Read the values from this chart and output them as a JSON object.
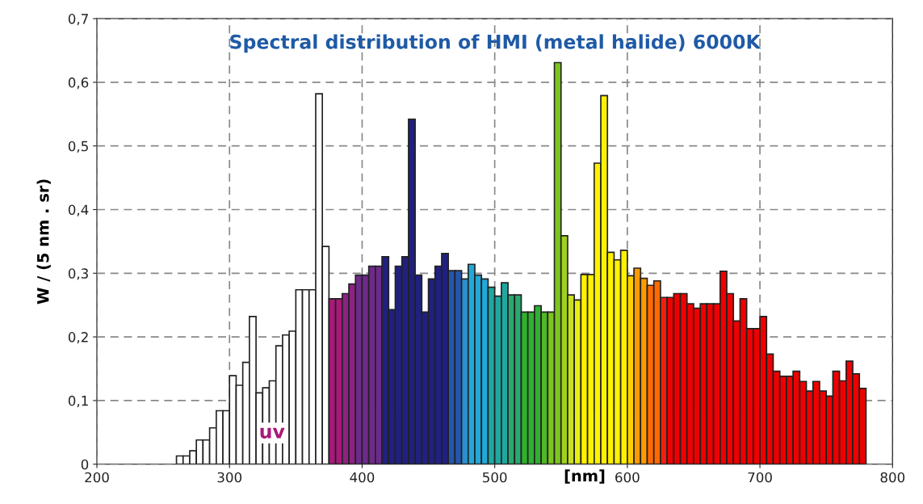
{
  "chart_data": {
    "type": "histogram",
    "title": "Spectral distribution of HMI (metal halide) 6000K",
    "xlabel": "[nm]",
    "ylabel": "W / (5 nm . sr)",
    "bins": [
      260,
      265,
      270,
      275,
      280,
      285,
      290,
      295,
      300,
      305,
      310,
      315,
      320,
      325,
      330,
      335,
      340,
      345,
      350,
      355,
      360,
      365,
      370,
      375,
      380,
      385,
      390,
      395,
      400,
      405,
      410,
      415,
      420,
      425,
      430,
      435,
      440,
      445,
      450,
      455,
      460,
      465,
      470,
      475,
      480,
      485,
      490,
      495,
      500,
      505,
      510,
      515,
      520,
      525,
      530,
      535,
      540,
      545,
      550,
      555,
      560,
      565,
      570,
      575,
      580,
      585,
      590,
      595,
      600,
      605,
      610,
      615,
      620,
      625,
      630,
      635,
      640,
      645,
      650,
      655,
      660,
      665,
      670,
      675,
      680,
      685,
      690,
      695,
      700,
      705,
      710,
      715,
      720,
      725,
      730,
      735,
      740,
      745,
      750,
      755,
      760,
      765,
      770,
      775,
      780
    ],
    "values": [
      0.013,
      0.013,
      0.021,
      0.038,
      0.038,
      0.057,
      0.084,
      0.084,
      0.139,
      0.124,
      0.16,
      0.232,
      0.112,
      0.12,
      0.131,
      0.186,
      0.203,
      0.209,
      0.274,
      0.274,
      0.274,
      0.582,
      0.342,
      0.26,
      0.26,
      0.268,
      0.283,
      0.297,
      0.297,
      0.311,
      0.311,
      0.326,
      0.243,
      0.311,
      0.326,
      0.542,
      0.297,
      0.239,
      0.291,
      0.311,
      0.331,
      0.304,
      0.304,
      0.291,
      0.314,
      0.297,
      0.291,
      0.278,
      0.264,
      0.285,
      0.266,
      0.266,
      0.239,
      0.239,
      0.249,
      0.239,
      0.239,
      0.631,
      0.359,
      0.266,
      0.258,
      0.298,
      0.298,
      0.473,
      0.579,
      0.333,
      0.321,
      0.336,
      0.296,
      0.308,
      0.292,
      0.281,
      0.288,
      0.262,
      0.262,
      0.268,
      0.268,
      0.252,
      0.245,
      0.252,
      0.252,
      0.252,
      0.303,
      0.268,
      0.225,
      0.26,
      0.213,
      0.213,
      0.232,
      0.173,
      0.146,
      0.138,
      0.138,
      0.146,
      0.13,
      0.115,
      0.13,
      0.115,
      0.107,
      0.146,
      0.131,
      0.162,
      0.142,
      0.119
    ],
    "colors": [
      "#ffffff",
      "#ffffff",
      "#ffffff",
      "#ffffff",
      "#ffffff",
      "#ffffff",
      "#ffffff",
      "#ffffff",
      "#ffffff",
      "#ffffff",
      "#ffffff",
      "#ffffff",
      "#ffffff",
      "#ffffff",
      "#ffffff",
      "#ffffff",
      "#ffffff",
      "#ffffff",
      "#ffffff",
      "#ffffff",
      "#ffffff",
      "#ffffff",
      "#ffffff",
      "#a8197a",
      "#a8197a",
      "#8e2282",
      "#8e2282",
      "#6e2a8a",
      "#6e2a8a",
      "#6e2a8a",
      "#6e2a8a",
      "#202080",
      "#202080",
      "#202080",
      "#202080",
      "#202080",
      "#202080",
      "#202080",
      "#202080",
      "#202080",
      "#202080",
      "#2456b0",
      "#2456b0",
      "#2b8fd0",
      "#22a8d8",
      "#22a8d8",
      "#22a8d8",
      "#1fa8a0",
      "#1fa8a0",
      "#1fa8a0",
      "#2aa870",
      "#2aa870",
      "#30b030",
      "#30b030",
      "#30b030",
      "#50b828",
      "#7cc520",
      "#7cc520",
      "#a0d020",
      "#c8e020",
      "#e8ee10",
      "#fff200",
      "#fff200",
      "#fff200",
      "#fff200",
      "#fff200",
      "#fff200",
      "#fff200",
      "#ffd000",
      "#ff9a00",
      "#ff9a00",
      "#ff6a00",
      "#ff6a00",
      "#f02010",
      "#ee0000",
      "#ee0000",
      "#ee0000",
      "#ee0000",
      "#ee0000",
      "#ee0000",
      "#ee0000",
      "#ee0000",
      "#ee0000",
      "#ee0000",
      "#ee0000",
      "#ee0000",
      "#ee0000",
      "#ee0000",
      "#ee0000",
      "#ee0000",
      "#ee0000",
      "#ee0000",
      "#ee0000",
      "#ee0000",
      "#ee0000",
      "#ee0000",
      "#ee0000",
      "#ee0000",
      "#ee0000",
      "#ee0000",
      "#ee0000",
      "#ee0000",
      "#ee0000",
      "#ee0000"
    ],
    "xlim": [
      200,
      800
    ],
    "xticks": [
      200,
      300,
      400,
      500,
      600,
      700,
      800
    ],
    "ylim": [
      0,
      0.7
    ],
    "yticks": [
      0,
      {
        "value": 0.1,
        "label": "0,1"
      },
      {
        "value": 0.2,
        "label": "0,2"
      },
      {
        "value": 0.3,
        "label": "0,3"
      },
      {
        "value": 0.4,
        "label": "0,4"
      },
      {
        "value": 0.5,
        "label": "0,5"
      },
      {
        "value": 0.6,
        "label": "0,6"
      },
      {
        "value": 0.7,
        "label": "0,7"
      }
    ],
    "grid": true,
    "annotations": [
      "uv"
    ]
  }
}
